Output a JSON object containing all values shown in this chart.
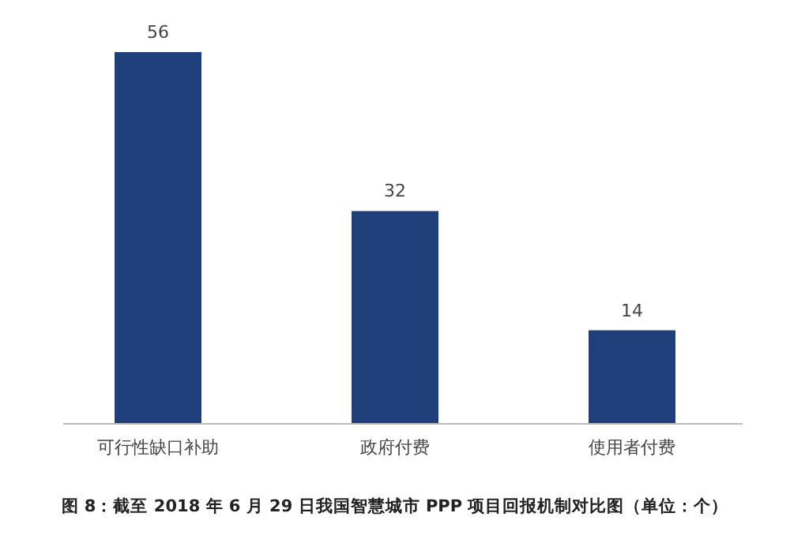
{
  "chart_data": {
    "type": "bar",
    "title": "图 8：截至 2018 年 6 月 29 日我国智慧城市 PPP 项目回报机制对比图（单位：个）",
    "categories": [
      "可行性缺口补助",
      "政府付费",
      "使用者付费"
    ],
    "values": [
      56,
      32,
      14
    ],
    "color": "#1f3f7a",
    "data_labels": true
  }
}
